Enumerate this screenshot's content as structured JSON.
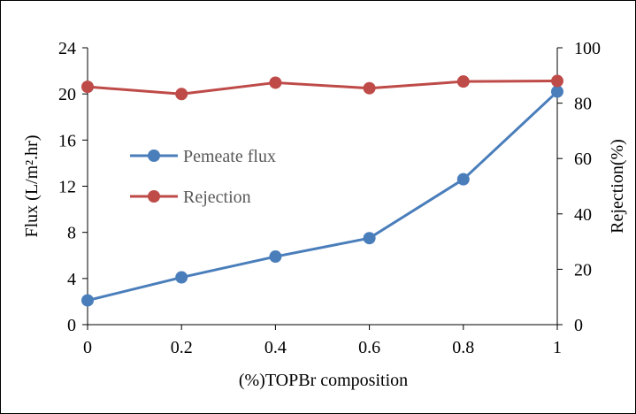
{
  "chart_data": {
    "type": "line",
    "title": "",
    "xlabel": "(%)TOPBr composition",
    "ylabel": "Flux (L/m².hr)",
    "y2label": "Rejection(%)",
    "x": [
      0,
      0.2,
      0.4,
      0.6,
      0.8,
      1
    ],
    "x_tick_labels": [
      "0",
      "0.2",
      "0.4",
      "0.6",
      "0.8",
      "1"
    ],
    "xlim": [
      0,
      1
    ],
    "ylim": [
      0,
      24
    ],
    "y_ticks": [
      0,
      4,
      8,
      12,
      16,
      20,
      24
    ],
    "y2lim": [
      0,
      100
    ],
    "y2_ticks": [
      0,
      20,
      40,
      60,
      80,
      100
    ],
    "grid": false,
    "legend_position": "middle-left",
    "series": [
      {
        "name": "Pemeate flux",
        "axis": "left",
        "color": "#4a7ebb",
        "values": [
          2.1,
          4.1,
          5.9,
          7.5,
          12.6,
          20.2
        ]
      },
      {
        "name": "Rejection",
        "axis": "right",
        "color": "#be4b48",
        "values": [
          85.9,
          83.3,
          87.4,
          85.4,
          87.8,
          88.0
        ]
      }
    ]
  }
}
